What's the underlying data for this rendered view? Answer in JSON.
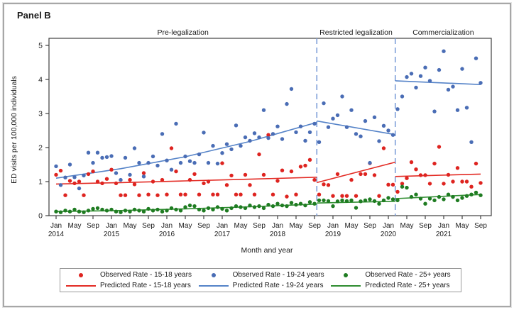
{
  "panel_title": "Panel B",
  "axes": {
    "x_label": "Month and year",
    "y_label": "ED visits per 100,000 individuals",
    "y_ticks": [
      "0",
      "1",
      "2",
      "3",
      "4",
      "5"
    ],
    "x_ticks": [
      {
        "m": 0,
        "label": "Jan",
        "year": "2014"
      },
      {
        "m": 4,
        "label": "May"
      },
      {
        "m": 8,
        "label": "Sep"
      },
      {
        "m": 12,
        "label": "Jan",
        "year": "2015"
      },
      {
        "m": 16,
        "label": "May"
      },
      {
        "m": 20,
        "label": "Sep"
      },
      {
        "m": 24,
        "label": "Jan",
        "year": "2016"
      },
      {
        "m": 28,
        "label": "May"
      },
      {
        "m": 32,
        "label": "Sep"
      },
      {
        "m": 36,
        "label": "Jan",
        "year": "2017"
      },
      {
        "m": 40,
        "label": "May"
      },
      {
        "m": 44,
        "label": "Sep"
      },
      {
        "m": 48,
        "label": "Jan",
        "year": "2018"
      },
      {
        "m": 52,
        "label": "May"
      },
      {
        "m": 56,
        "label": "Sep"
      },
      {
        "m": 60,
        "label": "Jan",
        "year": "2019"
      },
      {
        "m": 64,
        "label": "May"
      },
      {
        "m": 68,
        "label": "Sep"
      },
      {
        "m": 72,
        "label": "Jan",
        "year": "2020"
      },
      {
        "m": 76,
        "label": "May"
      },
      {
        "m": 80,
        "label": "Sep"
      },
      {
        "m": 84,
        "label": "Jan",
        "year": "2021"
      },
      {
        "m": 88,
        "label": "May"
      },
      {
        "m": 92,
        "label": "Sep"
      }
    ]
  },
  "periods": [
    {
      "label": "Pre-legalization",
      "start_month": null,
      "end_month": 56.5
    },
    {
      "label": "Restricted legalization",
      "start_month": 56.5,
      "end_month": 73.5
    },
    {
      "label": "Commercialization",
      "start_month": 73.5,
      "end_month": null
    }
  ],
  "chart_data": {
    "type": "scatter",
    "title": "Panel B",
    "xlabel": "Month and year",
    "ylabel": "ED visits per 100,000 individuals",
    "x_unit": "months since Jan 2014 (0 = Jan 2014, 92 = Sep 2021)",
    "x_range": [
      0,
      92
    ],
    "ylim": [
      0,
      5
    ],
    "grid": false,
    "legend_position": "bottom",
    "dividers_at_month": [
      56.5,
      73.5
    ],
    "series": [
      {
        "name": "Observed Rate - 15-18 years",
        "kind": "points",
        "color": "#DE2420",
        "values": [
          1.2,
          1.32,
          0.6,
          1.02,
          0.95,
          1.0,
          0.6,
          1.22,
          1.3,
          1.0,
          0.95,
          1.08,
          1.35,
          0.95,
          0.6,
          0.6,
          1.05,
          0.92,
          0.6,
          1.25,
          0.62,
          1.0,
          0.6,
          1.05,
          0.62,
          1.98,
          1.3,
          0.62,
          0.62,
          1.05,
          1.22,
          0.62,
          0.95,
          1.0,
          0.62,
          0.62,
          1.54,
          0.9,
          1.18,
          0.62,
          0.62,
          1.2,
          0.9,
          0.62,
          1.8,
          1.2,
          2.37,
          0.62,
          1.02,
          1.33,
          0.56,
          1.3,
          0.62,
          1.44,
          1.47,
          1.64,
          1.05,
          0.62,
          0.92,
          0.9,
          0.58,
          1.22,
          0.58,
          0.58,
          1.05,
          0.58,
          1.22,
          1.22,
          1.54,
          1.19,
          0.58,
          1.98,
          0.91,
          0.91,
          0.7,
          0.94,
          1.1,
          1.57,
          1.36,
          1.19,
          1.19,
          0.94,
          1.53,
          2.02,
          0.94,
          1.2,
          1.0,
          1.4,
          1.0,
          1.0,
          0.85,
          1.53,
          0.96
        ]
      },
      {
        "name": "Observed Rate - 19-24 years",
        "kind": "points",
        "color": "#4A6DB5",
        "values": [
          1.45,
          0.9,
          1.12,
          1.5,
          1.13,
          0.8,
          1.18,
          1.85,
          1.55,
          1.85,
          1.7,
          1.72,
          1.75,
          1.25,
          1.05,
          1.7,
          1.2,
          1.98,
          1.55,
          1.15,
          1.55,
          1.74,
          1.47,
          2.4,
          1.62,
          1.35,
          2.7,
          1.55,
          1.74,
          1.6,
          1.55,
          1.8,
          2.44,
          1.55,
          2.05,
          1.53,
          1.84,
          2.1,
          1.95,
          2.65,
          2.05,
          2.3,
          2.2,
          2.42,
          2.3,
          3.1,
          2.28,
          2.4,
          2.62,
          2.25,
          3.28,
          3.72,
          2.45,
          2.62,
          2.2,
          2.45,
          2.7,
          2.16,
          3.3,
          2.6,
          2.85,
          2.95,
          3.5,
          2.6,
          3.1,
          2.4,
          2.33,
          2.78,
          1.55,
          2.89,
          2.19,
          2.64,
          2.5,
          2.37,
          3.13,
          3.5,
          4.07,
          4.17,
          3.76,
          4.1,
          4.35,
          3.96,
          3.06,
          4.28,
          4.83,
          3.7,
          3.79,
          3.1,
          4.31,
          3.17,
          2.16,
          4.62,
          3.9
        ]
      },
      {
        "name": "Observed Rate - 25+ years",
        "kind": "points",
        "color": "#1F7C22",
        "values": [
          0.12,
          0.1,
          0.15,
          0.12,
          0.18,
          0.12,
          0.1,
          0.15,
          0.2,
          0.22,
          0.18,
          0.15,
          0.18,
          0.12,
          0.1,
          0.15,
          0.12,
          0.18,
          0.15,
          0.12,
          0.2,
          0.15,
          0.18,
          0.12,
          0.15,
          0.22,
          0.18,
          0.15,
          0.25,
          0.3,
          0.28,
          0.18,
          0.15,
          0.22,
          0.18,
          0.25,
          0.2,
          0.15,
          0.22,
          0.28,
          0.25,
          0.22,
          0.3,
          0.25,
          0.28,
          0.22,
          0.32,
          0.28,
          0.35,
          0.3,
          0.28,
          0.38,
          0.32,
          0.35,
          0.3,
          0.4,
          0.35,
          0.45,
          0.45,
          0.43,
          0.28,
          0.42,
          0.45,
          0.43,
          0.45,
          0.23,
          0.42,
          0.45,
          0.48,
          0.43,
          0.35,
          0.45,
          0.52,
          0.48,
          0.45,
          0.85,
          0.82,
          0.55,
          0.62,
          0.5,
          0.35,
          0.5,
          0.45,
          0.55,
          0.48,
          0.62,
          0.55,
          0.45,
          0.52,
          0.58,
          0.62,
          0.68,
          0.6
        ]
      },
      {
        "name": "Predicted Rate - 15-18 years",
        "kind": "line",
        "color": "#E32B24",
        "segments": [
          [
            [
              0,
              0.93
            ],
            [
              14,
              0.97
            ],
            [
              28,
              1.02
            ],
            [
              42,
              1.07
            ],
            [
              56.5,
              1.13
            ]
          ],
          [
            [
              56.5,
              0.97
            ],
            [
              73.5,
              1.57
            ]
          ],
          [
            [
              73.5,
              1.15
            ],
            [
              92,
              1.22
            ]
          ]
        ]
      },
      {
        "name": "Predicted Rate - 19-24 years",
        "kind": "line",
        "color": "#5583C8",
        "segments": [
          [
            [
              0,
              1.1
            ],
            [
              14,
              1.38
            ],
            [
              28,
              1.73
            ],
            [
              42,
              2.18
            ],
            [
              56.5,
              2.74
            ]
          ],
          [
            [
              56.5,
              2.78
            ],
            [
              73.5,
              2.38
            ]
          ],
          [
            [
              73.5,
              3.96
            ],
            [
              92,
              3.85
            ]
          ]
        ]
      },
      {
        "name": "Predicted Rate - 25+ years",
        "kind": "line",
        "color": "#2F8D30",
        "segments": [
          [
            [
              0,
              0.12
            ],
            [
              14,
              0.15
            ],
            [
              28,
              0.2
            ],
            [
              42,
              0.26
            ],
            [
              56.5,
              0.34
            ]
          ],
          [
            [
              56.5,
              0.37
            ],
            [
              73.5,
              0.42
            ]
          ],
          [
            [
              73.5,
              0.5
            ],
            [
              92,
              0.62
            ]
          ]
        ]
      }
    ]
  },
  "legend": {
    "items": [
      {
        "label": "Observed Rate - 15-18 years",
        "marker": "dot",
        "color": "#DE2420"
      },
      {
        "label": "Observed Rate - 19-24 years",
        "marker": "dot",
        "color": "#4A6DB5"
      },
      {
        "label": "Observed Rate - 25+ years",
        "marker": "dot",
        "color": "#1F7C22"
      },
      {
        "label": "Predicted Rate - 15-18 years",
        "marker": "line",
        "color": "#E32B24"
      },
      {
        "label": "Predicted Rate - 19-24 years",
        "marker": "line",
        "color": "#5583C8"
      },
      {
        "label": "Predicted Rate - 25+ years",
        "marker": "line",
        "color": "#2F8D30"
      }
    ]
  },
  "colors": {
    "divider": "#7D9ED8",
    "axis": "#3F3F3F",
    "frame_border": "#A7A7A7",
    "legend_border": "#9A9A9A",
    "text": "#1A1A1A"
  }
}
